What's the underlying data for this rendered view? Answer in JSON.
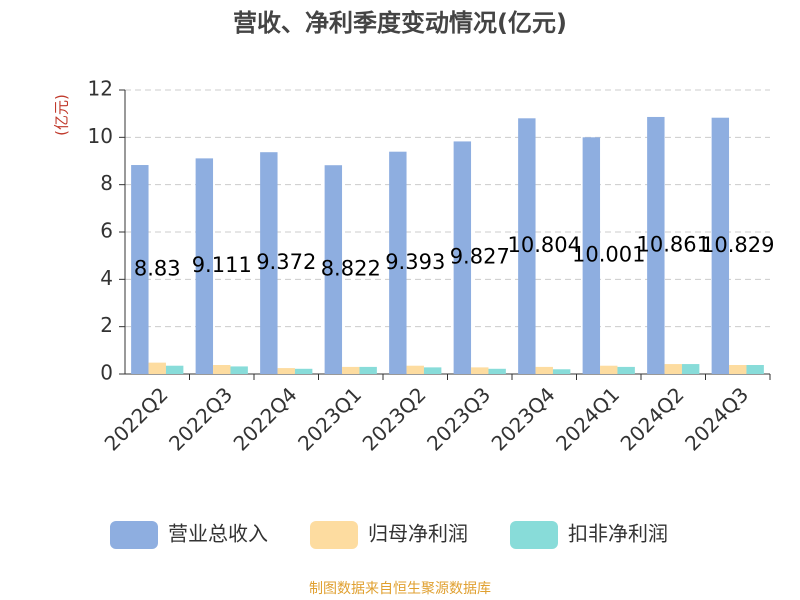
{
  "chart_data": {
    "type": "bar",
    "title": "营收、净利季度变动情况(亿元)",
    "y_label": "(亿元)",
    "categories": [
      "2022Q2",
      "2022Q3",
      "2022Q4",
      "2023Q1",
      "2023Q2",
      "2023Q3",
      "2023Q4",
      "2024Q1",
      "2024Q2",
      "2024Q3"
    ],
    "series": [
      {
        "name": "营业总收入",
        "color": "#8eaee0",
        "values": [
          8.83,
          9.111,
          9.372,
          8.822,
          9.393,
          9.827,
          10.804,
          10.001,
          10.861,
          10.829
        ]
      },
      {
        "name": "归母净利润",
        "color": "#fddca0",
        "values": [
          0.48,
          0.38,
          0.25,
          0.3,
          0.35,
          0.28,
          0.3,
          0.35,
          0.42,
          0.38
        ]
      },
      {
        "name": "扣非净利润",
        "color": "#88dcd9",
        "values": [
          0.35,
          0.32,
          0.22,
          0.3,
          0.28,
          0.22,
          0.2,
          0.3,
          0.42,
          0.38
        ]
      }
    ],
    "ylim": [
      0,
      12
    ],
    "yticks": [
      0,
      2,
      4,
      6,
      8,
      10,
      12
    ],
    "grid": true,
    "footer": "制图数据来自恒生聚源数据库"
  }
}
